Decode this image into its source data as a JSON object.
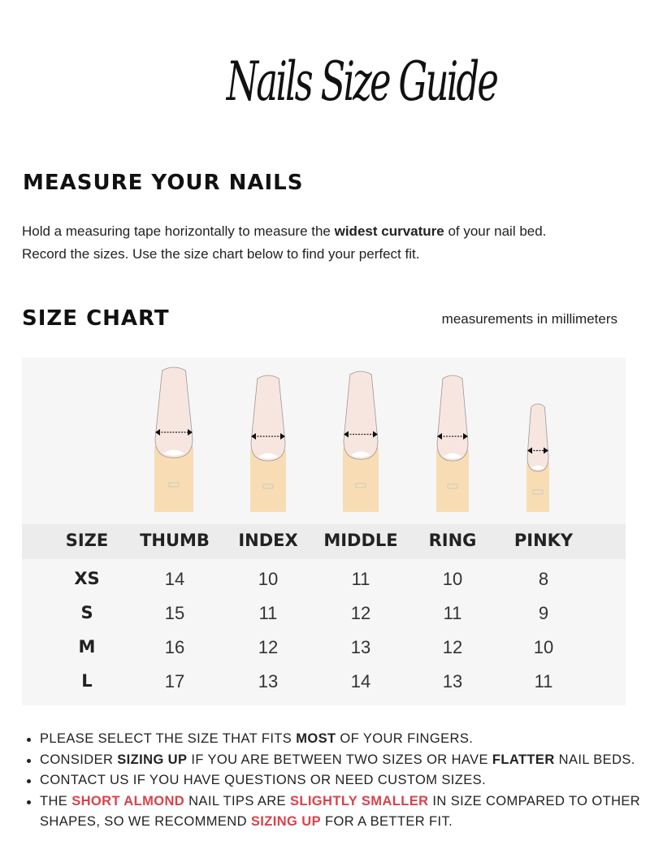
{
  "title": "Nails Size Guide",
  "measure": {
    "heading": "MEASURE YOUR NAILS",
    "text_before": "Hold a measuring tape horizontally to measure the ",
    "text_bold": "widest curvature",
    "text_after": " of your nail bed.",
    "line2": "Record the sizes. Use the size chart below to find your perfect fit."
  },
  "chart": {
    "heading": "SIZE CHART",
    "units": "measurements in millimeters",
    "headers": [
      "SIZE",
      "THUMB",
      "INDEX",
      "MIDDLE",
      "RING",
      "PINKY"
    ],
    "rows": [
      [
        "XS",
        "14",
        "10",
        "11",
        "10",
        "8"
      ],
      [
        "S",
        "15",
        "11",
        "12",
        "11",
        "9"
      ],
      [
        "M",
        "16",
        "12",
        "13",
        "12",
        "10"
      ],
      [
        "L",
        "17",
        "13",
        "14",
        "13",
        "11"
      ]
    ]
  },
  "colors": {
    "accent": "#d9424a",
    "nail": "#f7e6e0",
    "finger": "#f8ddb4",
    "table_bg": "#f6f6f6",
    "header_bg": "#ececec"
  },
  "notes": [
    [
      {
        "t": "PLEASE SELECT THE SIZE THAT FITS ",
        "s": ""
      },
      {
        "t": "MOST",
        "s": "bold"
      },
      {
        "t": " OF YOUR FINGERS.",
        "s": ""
      }
    ],
    [
      {
        "t": "CONSIDER ",
        "s": ""
      },
      {
        "t": "SIZING UP",
        "s": "bold"
      },
      {
        "t": " IF YOU ARE BETWEEN TWO SIZES OR HAVE ",
        "s": ""
      },
      {
        "t": "FLATTER",
        "s": "bold"
      },
      {
        "t": " NAIL BEDS.",
        "s": ""
      }
    ],
    [
      {
        "t": "CONTACT US IF YOU HAVE QUESTIONS OR NEED CUSTOM SIZES.",
        "s": ""
      }
    ],
    [
      {
        "t": "THE ",
        "s": ""
      },
      {
        "t": "SHORT ALMOND",
        "s": "red"
      },
      {
        "t": " NAIL TIPS ARE ",
        "s": ""
      },
      {
        "t": "SLIGHTLY SMALLER",
        "s": "red"
      },
      {
        "t": " IN SIZE COMPARED TO OTHER",
        "s": ""
      }
    ],
    [
      {
        "t": "SHAPES, SO WE RECOMMEND ",
        "s": ""
      },
      {
        "t": "SIZING UP",
        "s": "red"
      },
      {
        "t": " FOR A BETTER FIT.",
        "s": ""
      }
    ]
  ]
}
